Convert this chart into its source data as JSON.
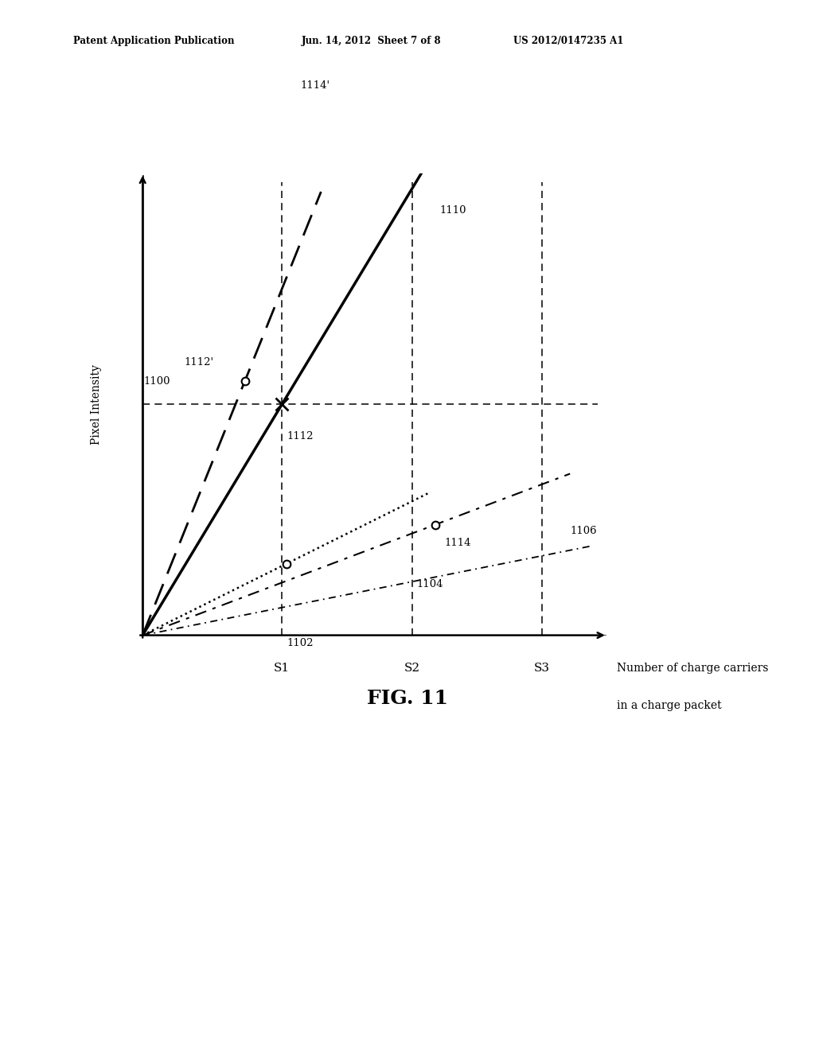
{
  "header_left": "Patent Application Publication",
  "header_center": "Jun. 14, 2012  Sheet 7 of 8",
  "header_right": "US 2012/0147235 A1",
  "fig_label": "FIG. 11",
  "xlabel_line1": "Number of charge carriers",
  "xlabel_line2": "in a charge packet",
  "ylabel": "Pixel Intensity",
  "background_color": "#ffffff",
  "S1": 0.3,
  "S2": 0.58,
  "S3": 0.86,
  "y_hline": 0.5,
  "slope_1100": 1.667,
  "slope_1102": 0.5,
  "slope_1104": 0.38,
  "slope_1110": 2.5
}
